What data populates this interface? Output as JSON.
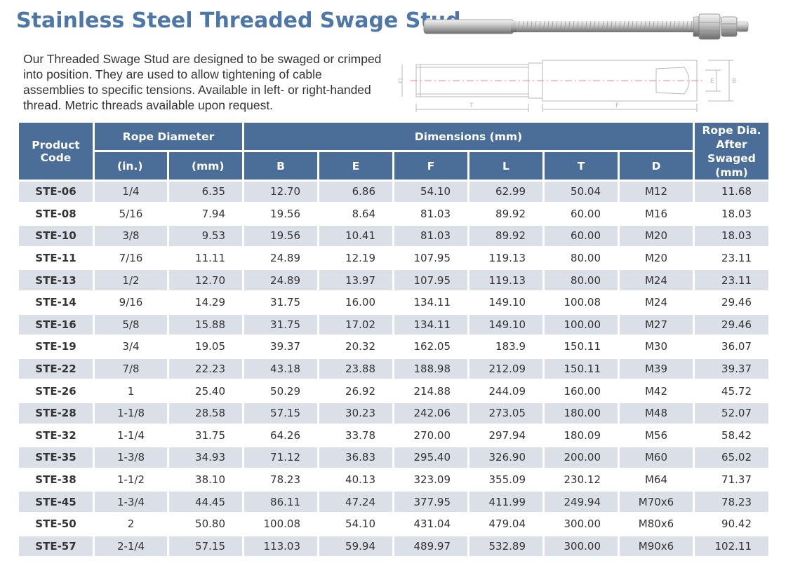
{
  "title": "Stainless Steel Threaded Swage Stud",
  "description_lines": [
    "Our Threaded Swage Stud are designed to be swaged or crimped",
    "into position. They are used to allow tightening of cable",
    "assemblies to specific tensions. Available in left- or right-handed",
    "thread. Metric threads available upon request."
  ],
  "drawing": {
    "labels": {
      "d": "D",
      "t": "T",
      "f": "F",
      "e": "E",
      "b": "B"
    }
  },
  "table": {
    "headers": {
      "product_code": "Product Code",
      "rope_diameter": "Rope Diameter",
      "in": "(in.)",
      "mm": "(mm)",
      "dimensions": "Dimensions (mm)",
      "b": "B",
      "e": "E",
      "f": "F",
      "l": "L",
      "t": "T",
      "d": "D",
      "rope_after": "Rope Dia. After Swaged (mm)"
    },
    "rows": [
      [
        "STE-06",
        "1/4",
        "6.35",
        "12.70",
        "6.86",
        "54.10",
        "62.99",
        "50.04",
        "M12",
        "11.68"
      ],
      [
        "STE-08",
        "5/16",
        "7.94",
        "19.56",
        "8.64",
        "81.03",
        "89.92",
        "60.00",
        "M16",
        "18.03"
      ],
      [
        "STE-10",
        "3/8",
        "9.53",
        "19.56",
        "10.41",
        "81.03",
        "89.92",
        "60.00",
        "M20",
        "18.03"
      ],
      [
        "STE-11",
        "7/16",
        "11.11",
        "24.89",
        "12.19",
        "107.95",
        "119.13",
        "80.00",
        "M20",
        "23.11"
      ],
      [
        "STE-13",
        "1/2",
        "12.70",
        "24.89",
        "13.97",
        "107.95",
        "119.13",
        "80.00",
        "M24",
        "23.11"
      ],
      [
        "STE-14",
        "9/16",
        "14.29",
        "31.75",
        "16.00",
        "134.11",
        "149.10",
        "100.08",
        "M24",
        "29.46"
      ],
      [
        "STE-16",
        "5/8",
        "15.88",
        "31.75",
        "17.02",
        "134.11",
        "149.10",
        "100.00",
        "M27",
        "29.46"
      ],
      [
        "STE-19",
        "3/4",
        "19.05",
        "39.37",
        "20.32",
        "162.05",
        "183.9",
        "150.11",
        "M30",
        "36.07"
      ],
      [
        "STE-22",
        "7/8",
        "22.23",
        "43.18",
        "23.88",
        "188.98",
        "212.09",
        "150.11",
        "M39",
        "39.37"
      ],
      [
        "STE-26",
        "1",
        "25.40",
        "50.29",
        "26.92",
        "214.88",
        "244.09",
        "160.00",
        "M42",
        "45.72"
      ],
      [
        "STE-28",
        "1-1/8",
        "28.58",
        "57.15",
        "30.23",
        "242.06",
        "273.05",
        "180.00",
        "M48",
        "52.07"
      ],
      [
        "STE-32",
        "1-1/4",
        "31.75",
        "64.26",
        "33.78",
        "270.00",
        "297.94",
        "180.09",
        "M56",
        "58.42"
      ],
      [
        "STE-35",
        "1-3/8",
        "34.93",
        "71.12",
        "36.83",
        "295.40",
        "326.90",
        "200.00",
        "M60",
        "65.02"
      ],
      [
        "STE-38",
        "1-1/2",
        "38.10",
        "78.23",
        "40.13",
        "323.09",
        "355.09",
        "230.12",
        "M64",
        "71.37"
      ],
      [
        "STE-45",
        "1-3/4",
        "44.45",
        "86.11",
        "47.24",
        "377.95",
        "411.99",
        "249.94",
        "M70x6",
        "78.23"
      ],
      [
        "STE-50",
        "2",
        "50.80",
        "100.08",
        "54.10",
        "431.04",
        "479.04",
        "300.00",
        "M80x6",
        "90.42"
      ],
      [
        "STE-57",
        "2-1/4",
        "57.15",
        "113.03",
        "59.94",
        "489.97",
        "532.89",
        "300.00",
        "M90x6",
        "102.11"
      ]
    ]
  }
}
